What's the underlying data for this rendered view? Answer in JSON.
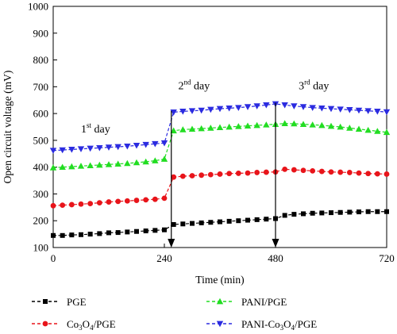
{
  "chart_data": {
    "type": "line",
    "xlabel": "Time (min)",
    "ylabel": "Open circuit voltage (mV)",
    "xlim": [
      0,
      720
    ],
    "ylim": [
      100,
      1000
    ],
    "xticks": [
      0,
      240,
      480,
      720
    ],
    "yticks": [
      100,
      200,
      300,
      400,
      500,
      600,
      700,
      800,
      900,
      1000
    ],
    "grid": false,
    "legend_position": "bottom",
    "annotations": [
      {
        "base": "1",
        "sup": "st",
        "rest": " day",
        "x": 60,
        "y": 530
      },
      {
        "base": "2",
        "sup": "nd",
        "rest": " day",
        "x": 270,
        "y": 690
      },
      {
        "base": "3",
        "sup": "rd",
        "rest": " day",
        "x": 530,
        "y": 690
      }
    ],
    "arrows": [
      {
        "x": 255,
        "y_from": 610,
        "y_to": 100
      },
      {
        "x": 480,
        "y_from": 640,
        "y_to": 100
      }
    ],
    "series": [
      {
        "name": "PGE",
        "name_parts": [
          {
            "t": "PGE"
          }
        ],
        "color": "#000000",
        "marker": "square",
        "x": [
          0,
          20,
          40,
          60,
          80,
          100,
          120,
          140,
          160,
          180,
          200,
          220,
          240,
          260,
          280,
          300,
          320,
          340,
          360,
          380,
          400,
          420,
          440,
          460,
          480,
          500,
          520,
          540,
          560,
          580,
          600,
          620,
          640,
          660,
          680,
          700,
          720
        ],
        "values": [
          145,
          145,
          147,
          148,
          150,
          152,
          155,
          156,
          158,
          160,
          162,
          164,
          166,
          186,
          188,
          190,
          192,
          194,
          196,
          198,
          200,
          202,
          204,
          206,
          208,
          220,
          224,
          226,
          228,
          229,
          230,
          231,
          232,
          233,
          234,
          234,
          234
        ]
      },
      {
        "name": "Co3O4/PGE",
        "name_parts": [
          {
            "t": "Co"
          },
          {
            "t": "3",
            "sub": true
          },
          {
            "t": "O"
          },
          {
            "t": "4",
            "sub": true
          },
          {
            "t": "/PGE"
          }
        ],
        "color": "#e8141a",
        "marker": "circle",
        "x": [
          0,
          20,
          40,
          60,
          80,
          100,
          120,
          140,
          160,
          180,
          200,
          220,
          240,
          260,
          280,
          300,
          320,
          340,
          360,
          380,
          400,
          420,
          440,
          460,
          480,
          500,
          520,
          540,
          560,
          580,
          600,
          620,
          640,
          660,
          680,
          700,
          720
        ],
        "values": [
          256,
          258,
          260,
          262,
          264,
          267,
          270,
          272,
          274,
          276,
          278,
          280,
          284,
          363,
          366,
          368,
          370,
          372,
          374,
          376,
          377,
          378,
          380,
          381,
          382,
          392,
          390,
          388,
          386,
          384,
          382,
          381,
          380,
          378,
          376,
          375,
          374
        ]
      },
      {
        "name": "PANI/PGE",
        "name_parts": [
          {
            "t": "PANI/PGE"
          }
        ],
        "color": "#22dd22",
        "marker": "triangle-up",
        "x": [
          0,
          20,
          40,
          60,
          80,
          100,
          120,
          140,
          160,
          180,
          200,
          220,
          240,
          260,
          280,
          300,
          320,
          340,
          360,
          380,
          400,
          420,
          440,
          460,
          480,
          500,
          520,
          540,
          560,
          580,
          600,
          620,
          640,
          660,
          680,
          700,
          720
        ],
        "values": [
          398,
          400,
          402,
          404,
          406,
          408,
          410,
          412,
          414,
          417,
          420,
          424,
          430,
          536,
          540,
          542,
          544,
          546,
          548,
          550,
          552,
          554,
          556,
          558,
          560,
          563,
          562,
          560,
          558,
          556,
          553,
          550,
          546,
          542,
          538,
          534,
          530
        ]
      },
      {
        "name": "PANI-Co3O4/PGE",
        "name_parts": [
          {
            "t": "PANI-Co"
          },
          {
            "t": "3",
            "sub": true
          },
          {
            "t": "O"
          },
          {
            "t": "4",
            "sub": true
          },
          {
            "t": "/PGE"
          }
        ],
        "color": "#2b2be0",
        "marker": "triangle-down",
        "x": [
          0,
          20,
          40,
          60,
          80,
          100,
          120,
          140,
          160,
          180,
          200,
          220,
          240,
          260,
          280,
          300,
          320,
          340,
          360,
          380,
          400,
          420,
          440,
          460,
          480,
          500,
          520,
          540,
          560,
          580,
          600,
          620,
          640,
          660,
          680,
          700,
          720
        ],
        "values": [
          462,
          464,
          466,
          468,
          470,
          472,
          474,
          476,
          478,
          481,
          484,
          487,
          490,
          605,
          608,
          610,
          612,
          615,
          618,
          620,
          622,
          625,
          628,
          632,
          636,
          632,
          628,
          625,
          622,
          620,
          618,
          616,
          614,
          612,
          610,
          608,
          606
        ]
      }
    ]
  }
}
